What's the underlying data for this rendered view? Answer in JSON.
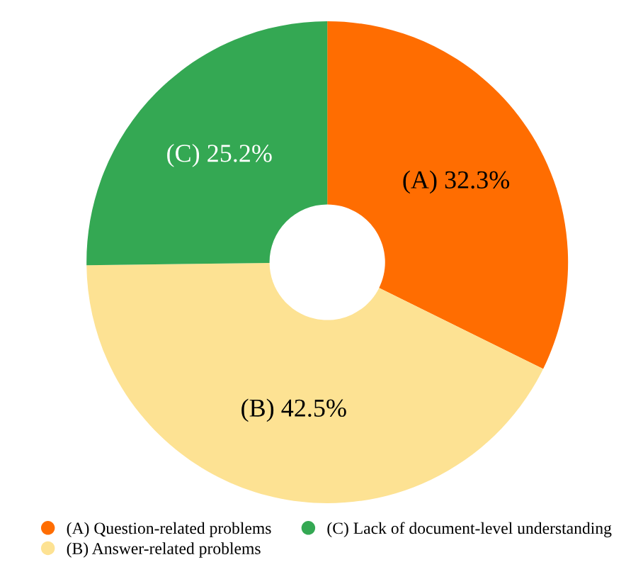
{
  "chart_data": {
    "type": "donut",
    "categories": [
      "(A) Question-related problems",
      "(B) Answer-related problems",
      "(C) Lack of document-level understanding"
    ],
    "values": [
      32.3,
      42.5,
      25.2
    ],
    "colors": [
      "#ff6d01",
      "#fde293",
      "#34a853"
    ],
    "value_labels": [
      "(A) 32.3%",
      "(B) 42.5%",
      "(C) 25.2%"
    ],
    "legend": "bottom"
  }
}
